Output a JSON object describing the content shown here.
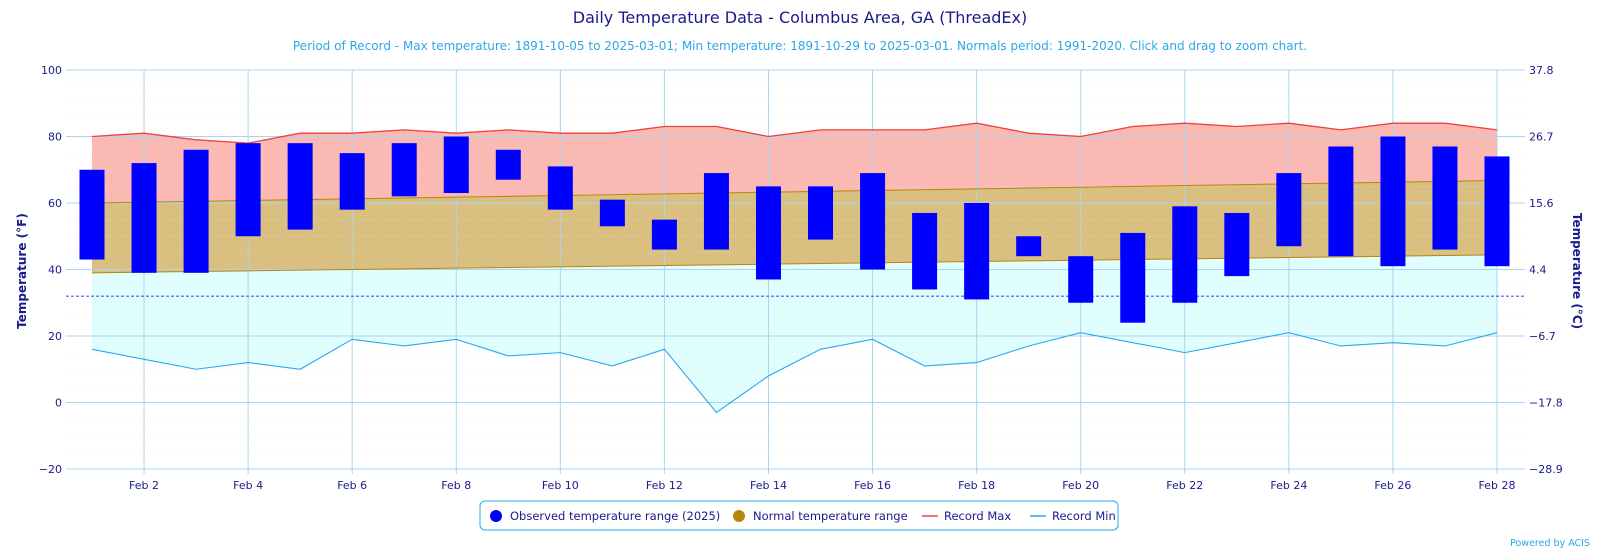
{
  "chart_data": {
    "type": "bar",
    "title": "Daily Temperature Data - Columbus Area, GA (ThreadEx)",
    "subtitle": "Period of Record - Max temperature: 1891-10-05 to 2025-03-01; Min temperature: 1891-10-29 to 2025-03-01. Normals period: 1991-2020. Click and drag to zoom chart.",
    "credit": "Powered by ACIS",
    "ylabel_left": "Temperature (°F)",
    "ylabel_right": "Temperature (°C)",
    "ylim": [
      -20,
      100
    ],
    "yticks": [
      -20,
      0,
      20,
      40,
      60,
      80,
      100
    ],
    "yticks_c": [
      "−28.9",
      "−17.8",
      "−6.7",
      "4.4",
      "15.6",
      "26.7",
      "37.8"
    ],
    "freezing_line": 32,
    "x_days": [
      1,
      28
    ],
    "xtick_labels": [
      "Feb 2",
      "Feb 4",
      "Feb 6",
      "Feb 8",
      "Feb 10",
      "Feb 12",
      "Feb 14",
      "Feb 16",
      "Feb 18",
      "Feb 20",
      "Feb 22",
      "Feb 24",
      "Feb 26",
      "Feb 28"
    ],
    "xtick_days": [
      2,
      4,
      6,
      8,
      10,
      12,
      14,
      16,
      18,
      20,
      22,
      24,
      26,
      28
    ],
    "record_max": [
      80,
      81,
      79,
      78,
      81,
      81,
      82,
      81,
      82,
      81,
      81,
      83,
      83,
      80,
      82,
      82,
      82,
      84,
      81,
      80,
      83,
      84,
      83,
      84,
      82,
      84,
      84,
      82
    ],
    "record_min": [
      16,
      13,
      10,
      12,
      10,
      19,
      17,
      19,
      14,
      15,
      11,
      16,
      -3,
      8,
      16,
      19,
      11,
      12,
      17,
      21,
      18,
      15,
      18,
      21,
      17,
      18,
      17,
      21
    ],
    "normal_max": [
      60,
      60.25,
      60.5,
      60.75,
      61,
      61.25,
      61.5,
      61.75,
      62,
      62.25,
      62.5,
      62.75,
      63,
      63.25,
      63.5,
      63.75,
      64,
      64.25,
      64.5,
      64.75,
      65,
      65.25,
      65.5,
      65.75,
      66,
      66.25,
      66.5,
      66.75
    ],
    "normal_min": [
      39,
      39.2,
      39.4,
      39.6,
      39.8,
      40,
      40.2,
      40.4,
      40.6,
      40.8,
      41,
      41.2,
      41.4,
      41.6,
      41.8,
      42,
      42.2,
      42.4,
      42.6,
      42.8,
      43,
      43.2,
      43.4,
      43.6,
      43.8,
      44,
      44.2,
      44.4
    ],
    "observed_max": [
      70,
      72,
      76,
      78,
      78,
      75,
      78,
      80,
      76,
      71,
      61,
      55,
      69,
      65,
      65,
      69,
      57,
      60,
      50,
      44,
      51,
      59,
      57,
      69,
      77,
      80,
      77,
      74
    ],
    "observed_min": [
      43,
      39,
      39,
      50,
      52,
      58,
      62,
      63,
      67,
      58,
      53,
      46,
      46,
      37,
      49,
      40,
      34,
      31,
      44,
      30,
      24,
      30,
      38,
      47,
      44,
      41,
      46,
      41
    ],
    "colors": {
      "observed": "#0000ff",
      "normal": "#b8860b",
      "normal_fill": "#d9bf80",
      "record_max": "#e8443a",
      "record_max_fill": "#fbb9b3",
      "record_min": "#29a9ef",
      "record_min_fill": "#e0fefe",
      "grid": "#aad4f0",
      "text": "#1a1a8c"
    },
    "legend": {
      "placement": "bottom-center",
      "items": [
        {
          "label": "Observed temperature range (2025)",
          "marker": "circle",
          "color": "#0000ff"
        },
        {
          "label": "Normal temperature range",
          "marker": "circle",
          "color": "#b8860b"
        },
        {
          "label": "Record Max",
          "marker": "line",
          "color": "#e8443a"
        },
        {
          "label": "Record Min",
          "marker": "line",
          "color": "#29a9ef"
        }
      ]
    }
  }
}
